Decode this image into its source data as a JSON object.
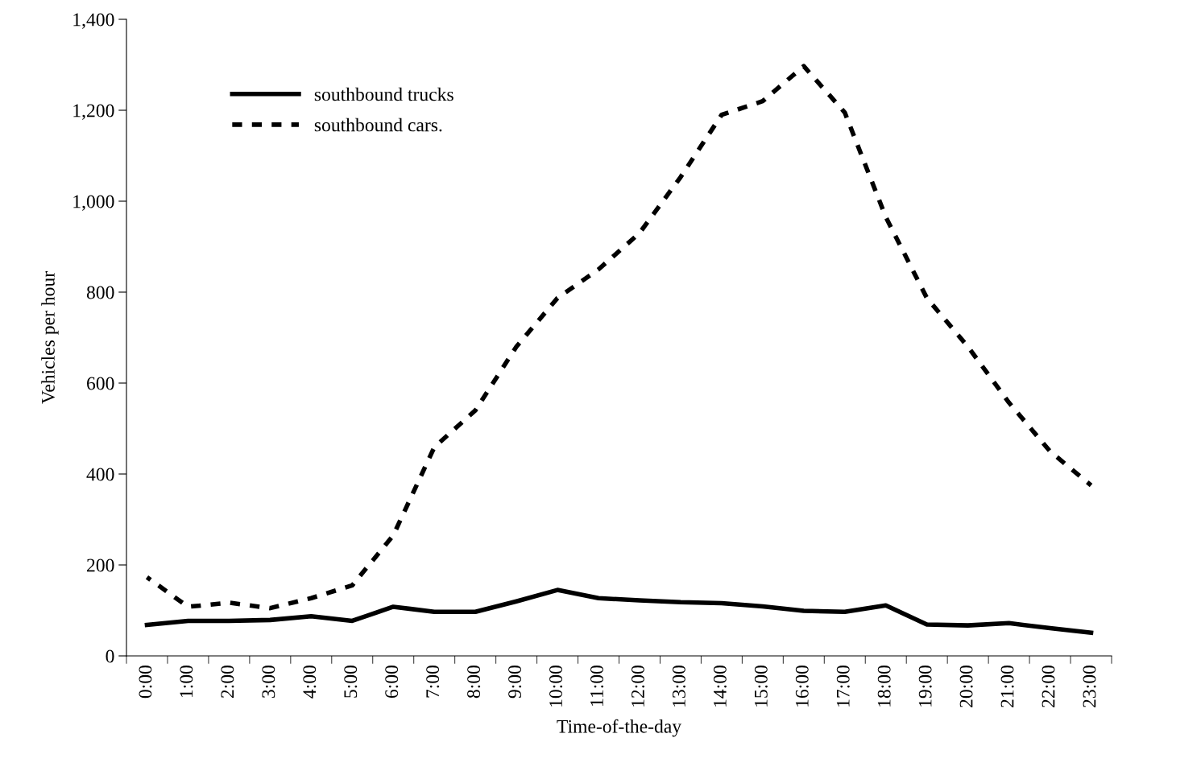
{
  "chart_data": {
    "type": "line",
    "xlabel": "Time-of-the-day",
    "ylabel": "Vehicles per hour",
    "categories": [
      "0:00",
      "1:00",
      "2:00",
      "3:00",
      "4:00",
      "5:00",
      "6:00",
      "7:00",
      "8:00",
      "9:00",
      "10:00",
      "11:00",
      "12:00",
      "13:00",
      "14:00",
      "15:00",
      "16:00",
      "17:00",
      "18:00",
      "19:00",
      "20:00",
      "21:00",
      "22:00",
      "23:00"
    ],
    "series": [
      {
        "name": "southbound trucks",
        "color": "#000000",
        "line_style": "solid",
        "values": [
          68,
          77,
          77,
          79,
          87,
          77,
          108,
          97,
          97,
          120,
          145,
          127,
          122,
          118,
          116,
          109,
          99,
          97,
          111,
          69,
          67,
          72,
          61,
          51
        ]
      },
      {
        "name": "southbound cars.",
        "color": "#000000",
        "line_style": "dashed",
        "values": [
          173,
          108,
          117,
          105,
          127,
          155,
          265,
          459,
          540,
          680,
          787,
          850,
          930,
          1053,
          1190,
          1220,
          1297,
          1195,
          965,
          787,
          680,
          557,
          450,
          375
        ]
      }
    ],
    "ylim": [
      0,
      1400
    ],
    "yticks": [
      {
        "value": 0,
        "label": "0"
      },
      {
        "value": 200,
        "label": "200"
      },
      {
        "value": 400,
        "label": "400"
      },
      {
        "value": 600,
        "label": "600"
      },
      {
        "value": 800,
        "label": "800"
      },
      {
        "value": 1000,
        "label": "1,000"
      },
      {
        "value": 1200,
        "label": "1,200"
      },
      {
        "value": 1400,
        "label": "1,400"
      }
    ],
    "grid": false,
    "legend": "top left",
    "marker": "none"
  }
}
